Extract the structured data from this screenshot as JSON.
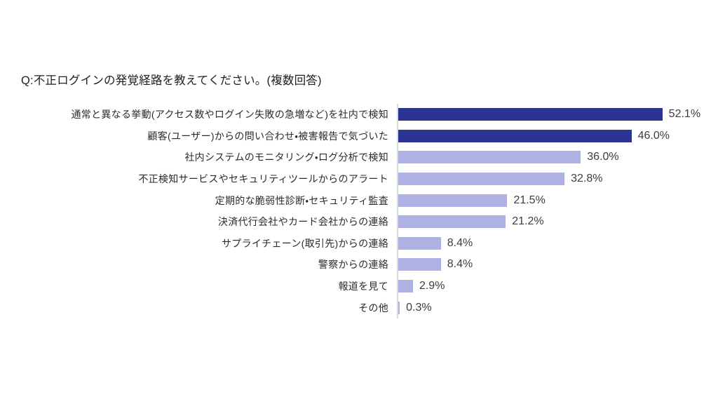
{
  "header": {
    "title": "Q:不正ログインの発覚経路を教えてください。(複数回答)"
  },
  "chart_data": {
    "type": "bar",
    "orientation": "horizontal",
    "title": "Q:不正ログインの発覚経路を教えてください。(複数回答)",
    "unit": "%",
    "categories": [
      "通常と異なる挙動(アクセス数やログイン失敗の急増など)を社内で検知",
      "顧客(ユーザー)からの問い合わせ・被害報告で気づいた",
      "社内システムのモニタリング・ログ分析で検知",
      "不正検知サービスやセキュリティツールからのアラート",
      "定期的な脆弱性診断・セキュリティ監査",
      "決済代行会社やカード会社からの連絡",
      "サプライチェーン(取引先)からの連絡",
      "警察からの連絡",
      "報道を見て",
      "その他"
    ],
    "values": [
      52.1,
      46.0,
      36.0,
      32.8,
      21.5,
      21.2,
      8.4,
      8.4,
      2.9,
      0.3
    ],
    "value_labels": [
      "52.1%",
      "46.0%",
      "36.0%",
      "32.8%",
      "21.5%",
      "21.2%",
      "8.4%",
      "8.4%",
      "2.9%",
      "0.3%"
    ],
    "emphasized_indices": [
      0,
      1
    ],
    "colors": {
      "bar_emphasis": "#2B3591",
      "bar_default": "#AEB2E2",
      "axis_line": "#D9D9D9",
      "value_text": "#3D3D3D",
      "category_text": "#2B2B2B"
    },
    "xlabel": "",
    "ylabel": "",
    "xlim": [
      0,
      58
    ],
    "grid": false,
    "legend": false
  }
}
